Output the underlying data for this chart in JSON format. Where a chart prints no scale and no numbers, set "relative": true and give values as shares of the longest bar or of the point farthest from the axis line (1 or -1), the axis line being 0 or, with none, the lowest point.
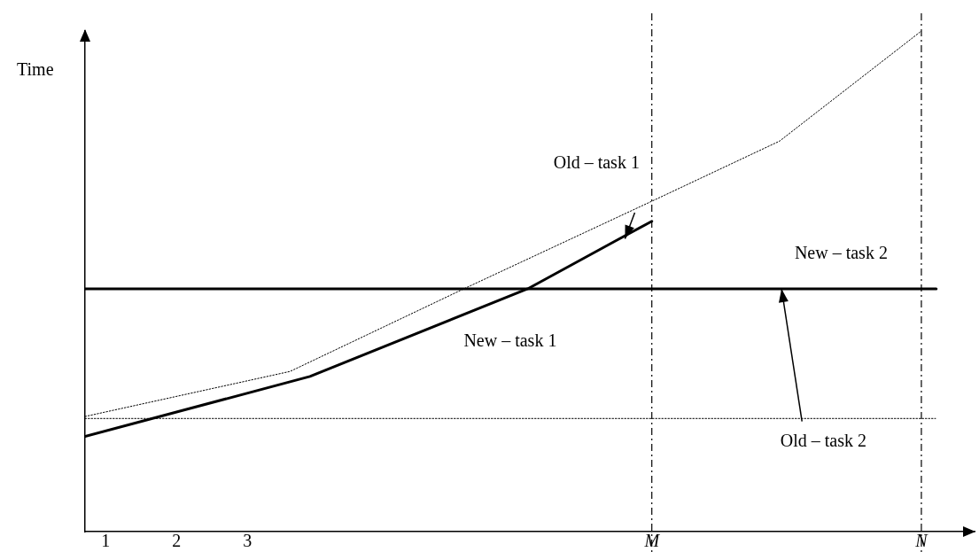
{
  "chart_data": {
    "type": "line",
    "relative": true,
    "ylabel": "Time",
    "xlim": [
      0.71,
      13.25
    ],
    "xticks": [
      1,
      2,
      3,
      {
        "value": 8.7,
        "label": "M"
      },
      {
        "value": 12.5,
        "label": "N"
      }
    ],
    "series": [
      {
        "name": "Old – task 1",
        "color": "#000000",
        "line_style": "dotted",
        "x": [
          0.71,
          3.6,
          6.05,
          8.7,
          10.5,
          12.5
        ],
        "values": [
          0.23,
          0.32,
          0.485,
          0.66,
          0.78,
          1.0
        ]
      },
      {
        "name": "New – task 1",
        "color": "#000000",
        "line_style": "solid",
        "x": [
          0.71,
          3.88,
          6.95,
          8.18,
          8.7
        ],
        "values": [
          0.19,
          0.31,
          0.485,
          0.58,
          0.62
        ]
      },
      {
        "name": "New – task 2",
        "color": "#000000",
        "line_style": "solid",
        "x": [
          0.71,
          12.71
        ],
        "values": [
          0.485,
          0.485
        ]
      },
      {
        "name": "Old – task 2",
        "color": "#000000",
        "line_style": "dotted",
        "x": [
          0.71,
          12.7
        ],
        "values": [
          0.226,
          0.226
        ]
      }
    ],
    "ref_lines": [
      {
        "axis": "x",
        "value": 8.7,
        "line_style": "dashed"
      },
      {
        "axis": "x",
        "value": 12.5,
        "line_style": "dashed"
      }
    ]
  }
}
